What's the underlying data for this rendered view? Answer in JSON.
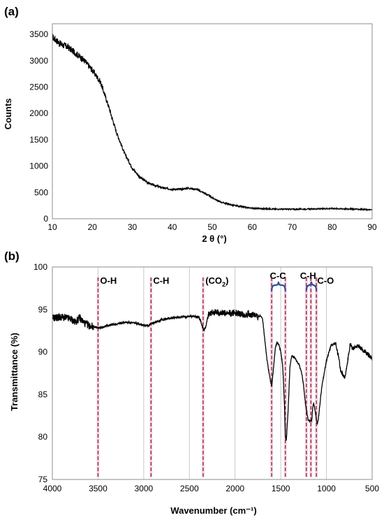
{
  "chart_data": [
    {
      "type": "line",
      "panel_label": "(a)",
      "xlabel": "2 θ (°)",
      "ylabel": "Counts",
      "xlim": [
        10,
        90
      ],
      "ylim": [
        0,
        3700
      ],
      "x_ticks": [
        10,
        20,
        30,
        40,
        50,
        60,
        70,
        80,
        90
      ],
      "y_ticks": [
        0,
        500,
        1000,
        1500,
        2000,
        2500,
        3000,
        3500
      ],
      "grid": false,
      "series": [
        {
          "color": "#000000",
          "noise": 60,
          "x": [
            10,
            12,
            14,
            16,
            18,
            20,
            22,
            24,
            26,
            28,
            30,
            32,
            34,
            36,
            38,
            40,
            42,
            44,
            46,
            48,
            50,
            52,
            55,
            58,
            60,
            65,
            70,
            75,
            80,
            85,
            90
          ],
          "y": [
            3450,
            3320,
            3250,
            3130,
            3000,
            2820,
            2600,
            2150,
            1650,
            1250,
            960,
            780,
            680,
            620,
            580,
            560,
            560,
            580,
            560,
            490,
            400,
            320,
            260,
            220,
            200,
            185,
            180,
            185,
            195,
            185,
            170
          ]
        }
      ]
    },
    {
      "type": "line",
      "panel_label": "(b)",
      "xlabel": "Wavenumber (cm⁻¹)",
      "ylabel": "Transmittance (%)",
      "xlim": [
        4000,
        500
      ],
      "ylim": [
        75,
        100
      ],
      "x_ticks": [
        4000,
        3500,
        3000,
        2500,
        2000,
        1500,
        1000,
        500
      ],
      "y_ticks": [
        75,
        80,
        85,
        90,
        95,
        100
      ],
      "grid": "vertical",
      "series": [
        {
          "color": "#000000",
          "x": [
            4000,
            3900,
            3800,
            3750,
            3700,
            3650,
            3600,
            3550,
            3500,
            3450,
            3400,
            3300,
            3200,
            3100,
            3000,
            2950,
            2900,
            2800,
            2700,
            2600,
            2500,
            2450,
            2400,
            2380,
            2360,
            2340,
            2320,
            2300,
            2250,
            2200,
            2100,
            2000,
            1900,
            1850,
            1800,
            1750,
            1720,
            1700,
            1680,
            1650,
            1620,
            1600,
            1580,
            1560,
            1540,
            1520,
            1500,
            1480,
            1460,
            1450,
            1440,
            1420,
            1400,
            1380,
            1350,
            1300,
            1270,
            1250,
            1230,
            1210,
            1200,
            1180,
            1160,
            1150,
            1140,
            1130,
            1110,
            1100,
            1090,
            1070,
            1050,
            1000,
            950,
            900,
            880,
            860,
            850,
            830,
            800,
            780,
            760,
            740,
            720,
            700,
            650,
            600,
            550,
            500
          ],
          "y": [
            94,
            94.1,
            93.9,
            93.5,
            94,
            93.4,
            93.1,
            93,
            92.8,
            92.9,
            93.1,
            93.3,
            93.5,
            93.4,
            93.2,
            93.1,
            93.4,
            93.8,
            94,
            94.1,
            94.2,
            94.2,
            94.1,
            93.8,
            93,
            92.6,
            93,
            94.2,
            94.6,
            94.7,
            94.5,
            94.6,
            94.4,
            94.5,
            94.3,
            94.2,
            94.2,
            94,
            92,
            89,
            87,
            86,
            88,
            90.5,
            91.1,
            90.8,
            90,
            88.5,
            84,
            80.2,
            79.5,
            83,
            88.2,
            89.5,
            89.3,
            88.5,
            87.5,
            86,
            84,
            82.5,
            82,
            81.8,
            82,
            83.5,
            84,
            83.5,
            82,
            81.5,
            82,
            84,
            86,
            89,
            90.8,
            91,
            90,
            89,
            88,
            87.5,
            87,
            88,
            89.5,
            91,
            90.5,
            90.5,
            90.8,
            90.2,
            89.8,
            89.2
          ]
        }
      ],
      "annotations": [
        {
          "label": "O-H",
          "x": 3500
        },
        {
          "label": "C-H",
          "x": 2920
        },
        {
          "label": "(CO",
          "subscript": "2",
          "suffix": ")",
          "x": 2340
        },
        {
          "label": "C-C",
          "x": 1520
        },
        {
          "label": "C-H",
          "x": 1190
        },
        {
          "label": "C-O",
          "x": 1070
        }
      ],
      "marker_lines": [
        3500,
        2920,
        2350,
        1600,
        1450,
        1220,
        1170,
        1110
      ],
      "brackets": [
        {
          "from": 1600,
          "to": 1450,
          "color": "#2e4ea0"
        },
        {
          "from": 1220,
          "to": 1110,
          "color": "#2e4ea0"
        }
      ]
    }
  ]
}
